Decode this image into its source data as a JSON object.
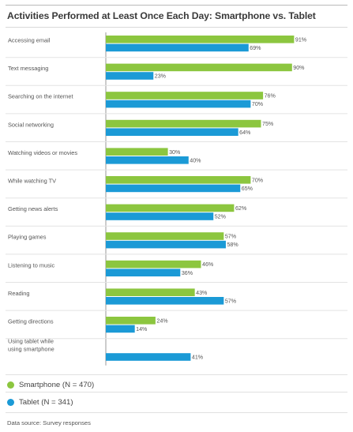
{
  "chart_data": {
    "type": "bar",
    "orientation": "horizontal",
    "title": "Activities Performed at Least Once Each Day: Smartphone vs. Tablet",
    "categories": [
      [
        "Accessing email"
      ],
      [
        "Text messaging"
      ],
      [
        "Searching on the internet"
      ],
      [
        "Social networking"
      ],
      [
        "Watching videos or movies"
      ],
      [
        "While watching TV"
      ],
      [
        "Getting news alerts"
      ],
      [
        "Playing games"
      ],
      [
        "Listening to music"
      ],
      [
        "Reading"
      ],
      [
        "Getting directions"
      ],
      [
        "Using tablet while",
        "using smartphone"
      ]
    ],
    "series": [
      {
        "name": "Smartphone (N = 470)",
        "color": "#8cc63f",
        "values": [
          91,
          90,
          76,
          75,
          30,
          70,
          62,
          57,
          46,
          43,
          24,
          null
        ]
      },
      {
        "name": "Tablet (N = 341)",
        "color": "#1b9ad6",
        "values": [
          69,
          23,
          70,
          64,
          40,
          65,
          52,
          58,
          36,
          57,
          14,
          41
        ]
      }
    ],
    "value_suffix": "%",
    "xlim": [
      0,
      100
    ],
    "grid": false,
    "legend_position": "bottom-left"
  },
  "source": "Data source: Survey responses"
}
